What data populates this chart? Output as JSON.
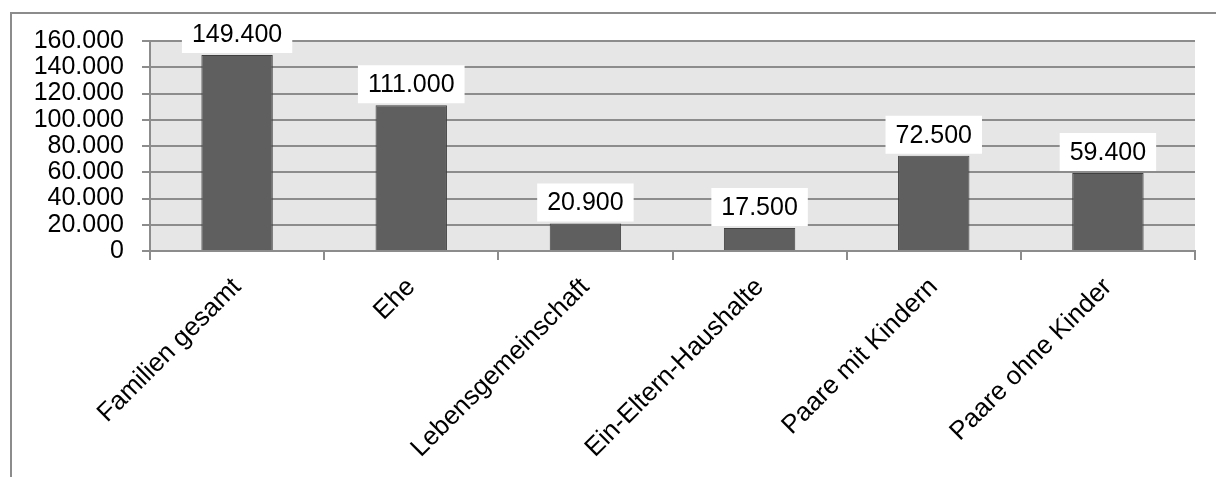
{
  "chart_data": {
    "type": "bar",
    "categories": [
      "Familien gesamt",
      "Ehe",
      "Lebensgemeinschaft",
      "Ein-Eltern-Haushalte",
      "Paare mit Kindern",
      "Paare ohne Kinder"
    ],
    "values": [
      149400,
      111000,
      20900,
      17500,
      72500,
      59400
    ],
    "value_labels": [
      "149.400",
      "111.000",
      "20.900",
      "17.500",
      "72.500",
      "59.400"
    ],
    "color": "#5f5f5f",
    "ylim": [
      0,
      160000
    ],
    "yticks": [
      0,
      {
        "value": 20000,
        "label": "20.000"
      },
      {
        "value": 40000,
        "label": "40.000"
      },
      {
        "value": 60000,
        "label": "60.000"
      },
      {
        "value": 80000,
        "label": "80.000"
      },
      {
        "value": 100000,
        "label": "100.000"
      },
      {
        "value": 120000,
        "label": "120.000"
      },
      {
        "value": 140000,
        "label": "140.000"
      },
      {
        "value": 160000,
        "label": "160.000"
      }
    ],
    "grid": "y"
  }
}
